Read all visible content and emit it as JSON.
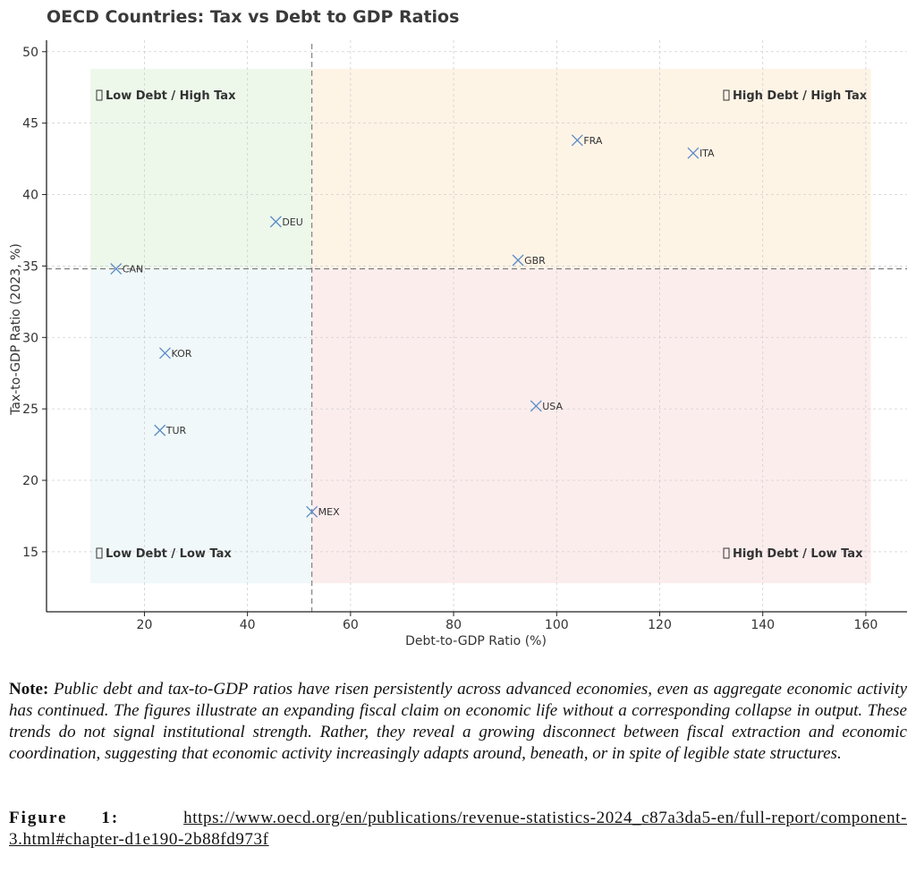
{
  "chart_data": {
    "type": "scatter",
    "title": "OECD Countries: Tax vs Debt to GDP Ratios",
    "xlabel": "Debt-to-GDP Ratio (%)",
    "ylabel": "Tax-to-GDP Ratio (2023, %)",
    "xlim": [
      1,
      168
    ],
    "ylim": [
      10.8,
      50.8
    ],
    "xticks": [
      20,
      40,
      60,
      80,
      100,
      120,
      140,
      160
    ],
    "yticks": [
      15,
      20,
      25,
      30,
      35,
      40,
      45,
      50
    ],
    "grid": true,
    "marker": "x",
    "marker_color": "#5b8ac7",
    "points": [
      {
        "label": "CAN",
        "x": 14.5,
        "y": 34.8
      },
      {
        "label": "DEU",
        "x": 45.5,
        "y": 38.1
      },
      {
        "label": "KOR",
        "x": 24.0,
        "y": 28.9
      },
      {
        "label": "TUR",
        "x": 23.0,
        "y": 23.5
      },
      {
        "label": "MEX",
        "x": 52.5,
        "y": 17.8
      },
      {
        "label": "FRA",
        "x": 104.0,
        "y": 43.8
      },
      {
        "label": "ITA",
        "x": 126.5,
        "y": 42.9
      },
      {
        "label": "GBR",
        "x": 92.5,
        "y": 35.4
      },
      {
        "label": "USA",
        "x": 96.0,
        "y": 25.2
      }
    ],
    "reference_lines": {
      "x": 52.5,
      "y": 34.8
    },
    "quadrants": [
      {
        "key": "low_debt_high_tax",
        "label": "Low Debt / High Tax",
        "color": "#e5f5e3"
      },
      {
        "key": "high_debt_high_tax",
        "label": "High Debt / High Tax",
        "color": "#fdf0dc"
      },
      {
        "key": "low_debt_low_tax",
        "label": "Low Debt / Low Tax",
        "color": "#eaf5f7"
      },
      {
        "key": "high_debt_low_tax",
        "label": "High Debt / Low Tax",
        "color": "#fbe6e6"
      }
    ],
    "quadrant_icon": "missing-glyph-icon"
  },
  "note": {
    "lead": "Note:",
    "body": "Public debt and tax-to-GDP ratios have risen persistently across advanced economies, even as aggregate economic activity has continued. The figures illustrate an expanding fiscal claim on economic life without a corresponding collapse in output. These trends do not signal institutional strength. Rather, they reveal a growing disconnect between fiscal extraction and economic coordination, suggesting that economic activity increasingly adapts around, beneath, or in spite of legible state structures."
  },
  "figure": {
    "label": "Figure 1:",
    "link": "https://www.oecd.org/en/publications/revenue-statistics-2024_c87a3da5-en/full-report/component-3.html#chapter-d1e190-2b88fd973f"
  }
}
